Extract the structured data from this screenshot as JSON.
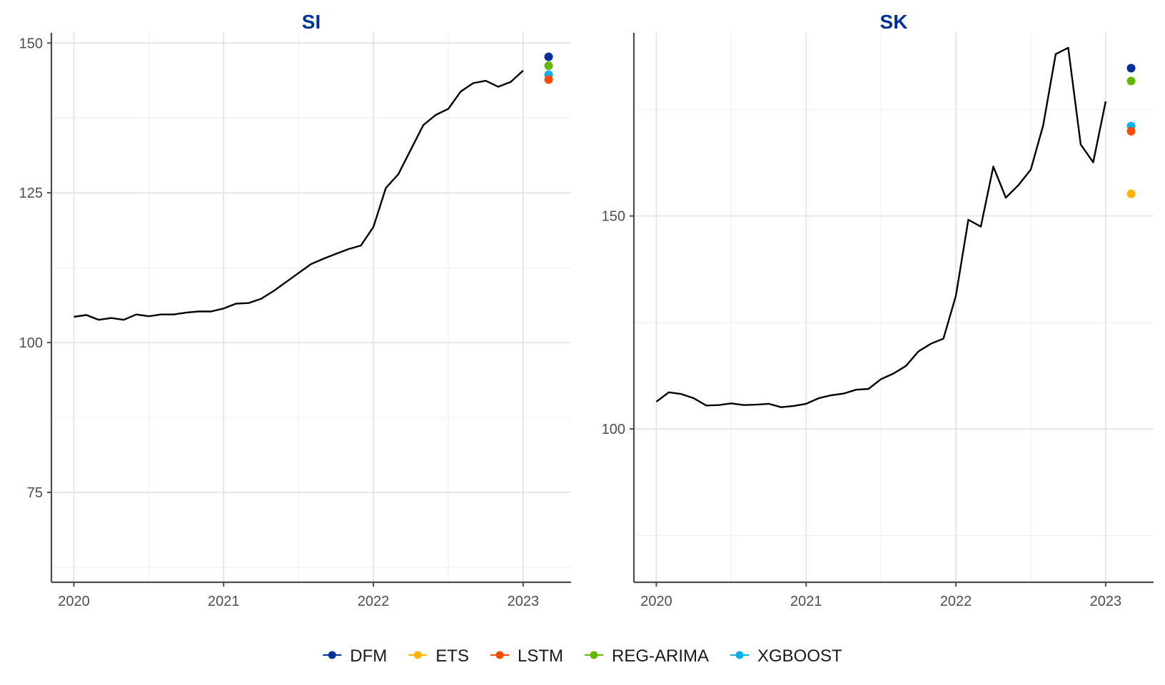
{
  "chart_data": [
    {
      "type": "line",
      "title": "SI",
      "xlabel": "",
      "ylabel": "",
      "x_ticks": [
        "2020",
        "2021",
        "2022",
        "2023"
      ],
      "y_ticks": [
        "75",
        "100",
        "125",
        "150"
      ],
      "xlim": [
        2019.85,
        2023.32
      ],
      "ylim": [
        60,
        151.7
      ],
      "grid": true,
      "series": [
        {
          "name": "actual",
          "start": 2020.0,
          "step_months": 1,
          "values": [
            104.3,
            104.6,
            103.8,
            104.1,
            103.8,
            104.7,
            104.4,
            104.7,
            104.7,
            105.0,
            105.2,
            105.2,
            105.7,
            106.5,
            106.6,
            107.3,
            108.6,
            110.1,
            111.6,
            113.1,
            114.0,
            114.8,
            115.6,
            116.2,
            119.3,
            125.8,
            128.1,
            132.2,
            136.3,
            138.0,
            139.0,
            141.9,
            143.3,
            143.7,
            142.7,
            143.5,
            145.4
          ]
        }
      ],
      "forecasts": [
        {
          "model": "DFM",
          "x": 2023.17,
          "y": 147.7
        },
        {
          "model": "REG-ARIMA",
          "x": 2023.17,
          "y": 146.2
        },
        {
          "model": "XGBOOST",
          "x": 2023.17,
          "y": 144.7
        },
        {
          "model": "LSTM",
          "x": 2023.17,
          "y": 143.9
        }
      ]
    },
    {
      "type": "line",
      "title": "SK",
      "xlabel": "",
      "ylabel": "",
      "x_ticks": [
        "2020",
        "2021",
        "2022",
        "2023"
      ],
      "y_ticks": [
        "100",
        "150"
      ],
      "xlim": [
        2019.85,
        2023.32
      ],
      "ylim": [
        64,
        193
      ],
      "grid": true,
      "series": [
        {
          "name": "actual",
          "start": 2020.0,
          "step_months": 1,
          "values": [
            106.4,
            108.6,
            108.2,
            107.2,
            105.5,
            105.6,
            106.0,
            105.6,
            105.7,
            105.9,
            105.1,
            105.4,
            105.9,
            107.2,
            107.9,
            108.3,
            109.2,
            109.4,
            111.7,
            113.0,
            114.8,
            118.2,
            120.0,
            121.2,
            131.3,
            149.1,
            147.5,
            161.6,
            154.3,
            157.2,
            160.9,
            171.3,
            188.0,
            189.5,
            166.8,
            162.6,
            176.9
          ]
        }
      ],
      "forecasts": [
        {
          "model": "DFM",
          "x": 2023.17,
          "y": 184.7
        },
        {
          "model": "REG-ARIMA",
          "x": 2023.17,
          "y": 181.7
        },
        {
          "model": "XGBOOST",
          "x": 2023.17,
          "y": 171.1
        },
        {
          "model": "LSTM",
          "x": 2023.17,
          "y": 169.9
        },
        {
          "model": "ETS",
          "x": 2023.17,
          "y": 155.2
        }
      ]
    }
  ],
  "legend": {
    "items": [
      {
        "label": "DFM",
        "color": "#003299"
      },
      {
        "label": "ETS",
        "color": "#FFB400"
      },
      {
        "label": "LSTM",
        "color": "#FF4B00"
      },
      {
        "label": "REG-ARIMA",
        "color": "#65B800"
      },
      {
        "label": "XGBOOST",
        "color": "#00B1EA"
      }
    ]
  },
  "colors": {
    "title": "#003299",
    "line": "#000000"
  }
}
